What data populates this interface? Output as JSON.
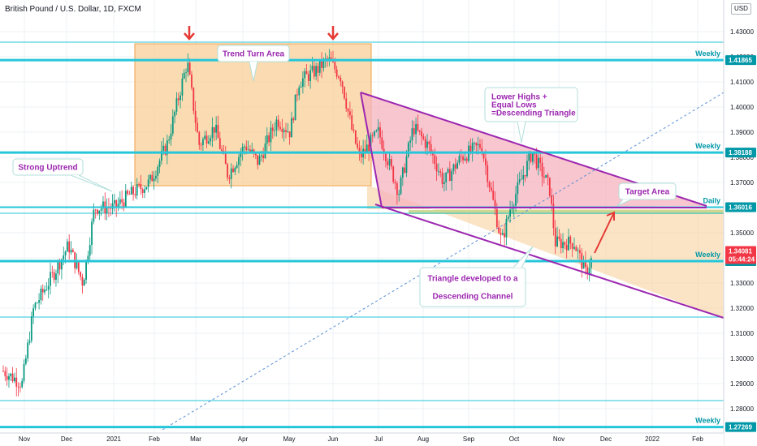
{
  "header": {
    "symbol_title": "British Pound / U.S. Dollar, 1D, FXCM",
    "currency": "USD"
  },
  "chart_data": {
    "type": "candlestick",
    "title": "British Pound / U.S. Dollar, 1D, FXCM",
    "x_ticks": [
      "Nov",
      "Dec",
      "2021",
      "Feb",
      "Mar",
      "Apr",
      "May",
      "Jun",
      "Jul",
      "Aug",
      "Sep",
      "Oct",
      "Nov",
      "Dec",
      "2022",
      "Feb"
    ],
    "y_ticks": [
      1.43,
      1.42,
      1.41,
      1.4,
      1.39,
      1.38,
      1.37,
      1.36,
      1.35,
      1.34,
      1.33,
      1.32,
      1.31,
      1.3,
      1.29,
      1.28
    ],
    "y_tick_labels": [
      "1.43000",
      "1.42000",
      "1.41000",
      "1.40000",
      "1.39000",
      "1.38000",
      "1.37000",
      "1.36000",
      "1.35000",
      "1.34000",
      "1.33000",
      "1.32000",
      "1.31000",
      "1.30000",
      "1.29000",
      "1.28000"
    ],
    "ylim": [
      1.267,
      1.448
    ],
    "date_range": [
      "2020-10-20",
      "2022-02-28"
    ],
    "price_path": [
      [
        "2020-10-20",
        1.295
      ],
      [
        "2020-11-02",
        1.29
      ],
      [
        "2020-11-10",
        1.32
      ],
      [
        "2020-11-25",
        1.335
      ],
      [
        "2020-12-04",
        1.345
      ],
      [
        "2020-12-14",
        1.33
      ],
      [
        "2020-12-22",
        1.36
      ],
      [
        "2021-01-05",
        1.36
      ],
      [
        "2021-01-15",
        1.365
      ],
      [
        "2021-01-29",
        1.37
      ],
      [
        "2021-02-10",
        1.385
      ],
      [
        "2021-02-24",
        1.418
      ],
      [
        "2021-03-04",
        1.385
      ],
      [
        "2021-03-15",
        1.392
      ],
      [
        "2021-03-24",
        1.373
      ],
      [
        "2021-04-05",
        1.385
      ],
      [
        "2021-04-14",
        1.378
      ],
      [
        "2021-04-27",
        1.395
      ],
      [
        "2021-05-06",
        1.39
      ],
      [
        "2021-05-12",
        1.41
      ],
      [
        "2021-05-25",
        1.415
      ],
      [
        "2021-06-01",
        1.419
      ],
      [
        "2021-06-10",
        1.412
      ],
      [
        "2021-06-18",
        1.39
      ],
      [
        "2021-06-23",
        1.38
      ],
      [
        "2021-07-06",
        1.39
      ],
      [
        "2021-07-20",
        1.366
      ],
      [
        "2021-07-30",
        1.392
      ],
      [
        "2021-08-10",
        1.384
      ],
      [
        "2021-08-20",
        1.37
      ],
      [
        "2021-09-01",
        1.38
      ],
      [
        "2021-09-15",
        1.385
      ],
      [
        "2021-09-29",
        1.346
      ],
      [
        "2021-10-05",
        1.36
      ],
      [
        "2021-10-20",
        1.382
      ],
      [
        "2021-11-01",
        1.368
      ],
      [
        "2021-11-05",
        1.346
      ],
      [
        "2021-11-18",
        1.346
      ],
      [
        "2021-11-26",
        1.334
      ],
      [
        "2021-12-01",
        1.3408
      ]
    ],
    "horizontal_levels": [
      {
        "label": "Weekly",
        "value": 1.41865,
        "price_label": "1.41865"
      },
      {
        "label": "Weekly",
        "value": 1.38188,
        "price_label": "1.38188"
      },
      {
        "label": "Daily",
        "value": 1.36016,
        "price_label": "1.36016"
      },
      {
        "label": "Weekly",
        "value": 1.3387,
        "price_label": "1.33870"
      },
      {
        "label": "Weekly",
        "value": 1.27269,
        "price_label": "1.27269"
      }
    ],
    "current_price": {
      "value": 1.34081,
      "price_label": "1.34081",
      "countdown": "05:44:24"
    },
    "annotations": [
      "Trend Turn Area",
      "Strong Uptrend",
      "Lower Highs +",
      "Equal Lows",
      "=Descending Triangle",
      "Target Area",
      "Triangle developed to a",
      "Descending Channel"
    ],
    "grid": true
  },
  "colors": {
    "level_line": "#26c6da",
    "level_tag_bg": "#0097a7",
    "up_candle": "#089981",
    "down_candle": "#f23645",
    "current_price_bg": "#f23645",
    "channel_line": "#9c27b0",
    "orange_zone": "#f9d29f",
    "pink_zone": "#f6b3bd",
    "arrow": "#e53935",
    "callout_text": "#9c27b0"
  }
}
